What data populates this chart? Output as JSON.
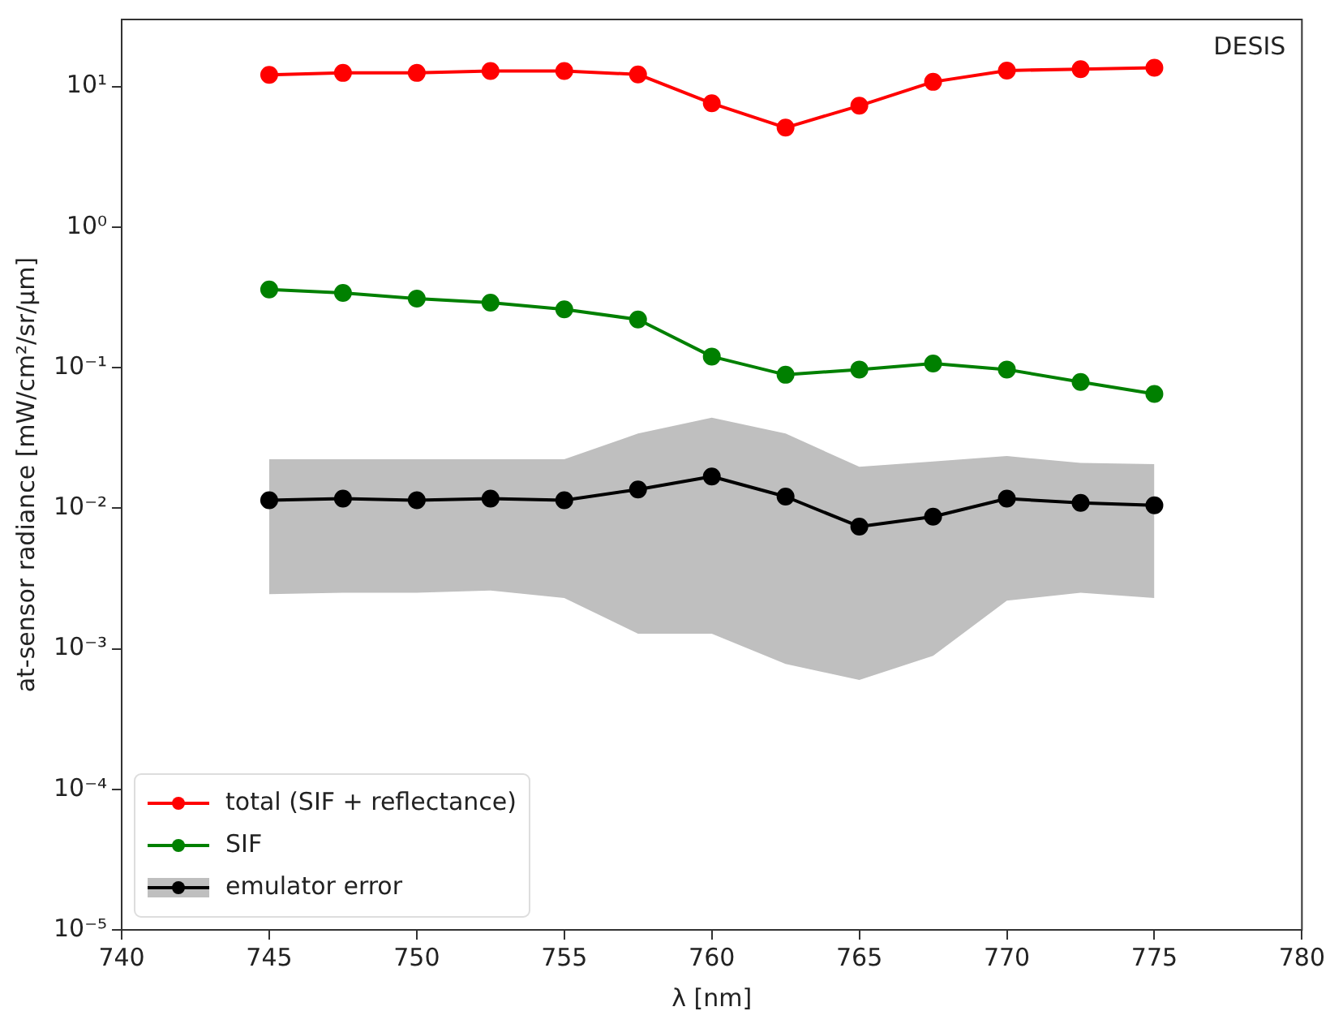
{
  "chart_data": {
    "type": "line",
    "xlabel": "λ [nm]",
    "ylabel": "at-sensor radiance [mW/cm²/sr/μm]",
    "annotations": [
      "DESIS"
    ],
    "x": [
      745,
      747.5,
      750,
      752.5,
      755,
      757.5,
      760,
      762.5,
      765,
      767.5,
      770,
      772.5,
      775
    ],
    "series": [
      {
        "name": "total (SIF + reflectance)",
        "color": "#ff0000",
        "values": [
          12.1,
          12.5,
          12.5,
          12.9,
          12.9,
          12.2,
          7.6,
          5.1,
          7.3,
          10.8,
          13,
          13.3,
          13.6
        ]
      },
      {
        "name": "SIF",
        "color": "#008000",
        "values": [
          0.36,
          0.34,
          0.31,
          0.29,
          0.26,
          0.22,
          0.12,
          0.089,
          0.097,
          0.107,
          0.097,
          0.079,
          0.065
        ]
      },
      {
        "name": "emulator error",
        "color": "#000000",
        "values": [
          0.0114,
          0.0117,
          0.0114,
          0.0117,
          0.0114,
          0.0136,
          0.0168,
          0.0121,
          0.0074,
          0.0087,
          0.0117,
          0.0109,
          0.0105
        ],
        "lower": [
          0.00245,
          0.0025,
          0.0025,
          0.0026,
          0.0023,
          0.00128,
          0.00128,
          0.00078,
          0.0006,
          0.00089,
          0.0022,
          0.0025,
          0.0023
        ],
        "upper": [
          0.0223,
          0.0223,
          0.0223,
          0.0223,
          0.0223,
          0.034,
          0.044,
          0.034,
          0.0197,
          0.0215,
          0.0235,
          0.021,
          0.0206
        ]
      }
    ],
    "log": "y",
    "xlim": [
      740,
      780
    ],
    "xticks": [
      740,
      745,
      750,
      755,
      760,
      765,
      770,
      775,
      780
    ],
    "ylim": [
      1e-05,
      30
    ],
    "yticks": [
      {
        "value": 1e-05,
        "label": "10⁻⁵"
      },
      {
        "value": 0.0001,
        "label": "10⁻⁴"
      },
      {
        "value": 0.001,
        "label": "10⁻³"
      },
      {
        "value": 0.01,
        "label": "10⁻²"
      },
      {
        "value": 0.1,
        "label": "10⁻¹"
      },
      {
        "value": 1,
        "label": "10⁰"
      },
      {
        "value": 10,
        "label": "10¹"
      }
    ],
    "legend": "bottom left",
    "marker": "circle",
    "line_style": "solid"
  }
}
